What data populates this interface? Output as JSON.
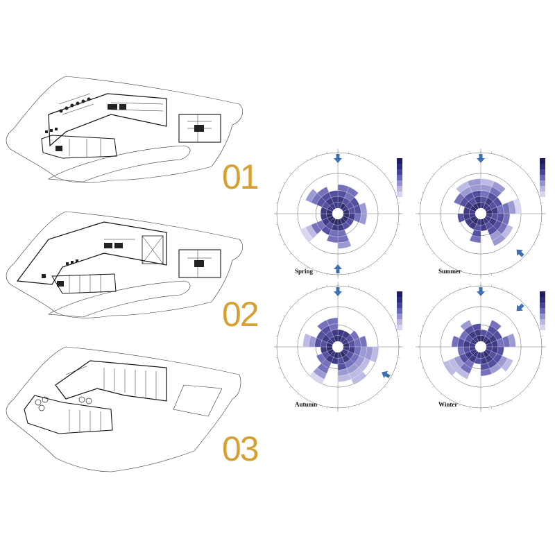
{
  "floors": [
    {
      "id": "01",
      "label": "01"
    },
    {
      "id": "02",
      "label": "02"
    },
    {
      "id": "03",
      "label": "03"
    }
  ],
  "wind_roses": [
    {
      "season": "Spring",
      "arrows": [
        [
          0.0,
          "in"
        ],
        [
          180.0,
          "in"
        ]
      ]
    },
    {
      "season": "Summer",
      "arrows": [
        [
          0.0,
          "in"
        ],
        [
          135.0,
          "in"
        ]
      ]
    },
    {
      "season": "Autumn",
      "arrows": [
        [
          0.0,
          "in"
        ],
        [
          120.0,
          "in"
        ]
      ]
    },
    {
      "season": "Winter",
      "arrows": [
        [
          0.0,
          "in"
        ],
        [
          45.0,
          "in"
        ]
      ]
    }
  ],
  "colors": {
    "floor_number": "#d4a032",
    "arrow": "#3f6fb1",
    "rose_dark": "#1e1b5e",
    "rose_light": "#c9c6ea"
  }
}
